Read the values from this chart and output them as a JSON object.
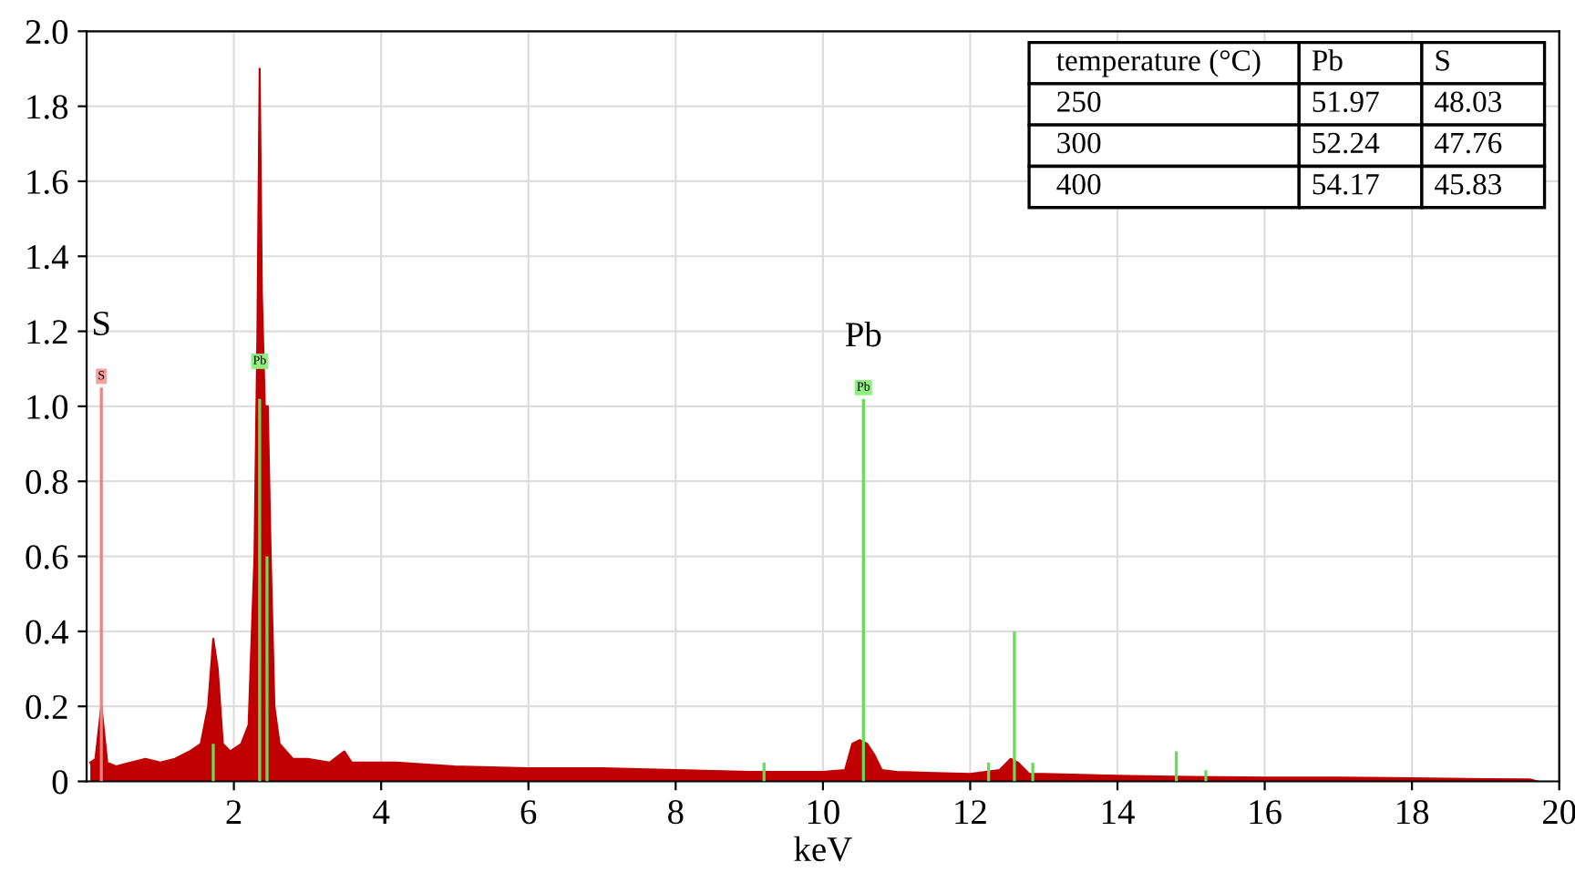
{
  "chart_data": {
    "type": "area",
    "xlabel": "keV",
    "xlim": [
      0,
      20
    ],
    "ylim": [
      0,
      2.0
    ],
    "xticks": [
      2,
      4,
      6,
      8,
      10,
      12,
      14,
      16,
      18,
      20
    ],
    "yticks": [
      0,
      0.2,
      0.4,
      0.6,
      0.8,
      {
        "value": 1.0,
        "label": "1.0"
      },
      1.2,
      1.4,
      1.6,
      1.8,
      {
        "value": 2.0,
        "label": "2.0"
      }
    ],
    "grid": true,
    "series": [
      {
        "color": "#c00000",
        "x": [
          0.05,
          0.12,
          0.2,
          0.28,
          0.4,
          0.6,
          0.8,
          1.0,
          1.2,
          1.4,
          1.55,
          1.65,
          1.72,
          1.78,
          1.85,
          1.95,
          2.1,
          2.2,
          2.28,
          2.32,
          2.35,
          2.38,
          2.42,
          2.46,
          2.5,
          2.55,
          2.62,
          2.8,
          3.0,
          3.3,
          3.5,
          3.6,
          3.8,
          4.2,
          5.0,
          6.0,
          7.0,
          8.0,
          9.0,
          10.0,
          10.3,
          10.4,
          10.5,
          10.6,
          10.7,
          10.8,
          11.0,
          12.0,
          12.4,
          12.55,
          12.65,
          12.8,
          13.0,
          14.0,
          15.0,
          16.0,
          17.0,
          18.0,
          19.0,
          19.6,
          19.7
        ],
        "values": [
          0.05,
          0.06,
          0.2,
          0.05,
          0.04,
          0.05,
          0.06,
          0.05,
          0.06,
          0.08,
          0.1,
          0.2,
          0.38,
          0.3,
          0.1,
          0.08,
          0.1,
          0.15,
          0.6,
          1.2,
          1.9,
          1.3,
          1.0,
          1.0,
          0.6,
          0.2,
          0.1,
          0.06,
          0.06,
          0.05,
          0.08,
          0.05,
          0.05,
          0.05,
          0.04,
          0.035,
          0.035,
          0.03,
          0.025,
          0.025,
          0.03,
          0.1,
          0.11,
          0.1,
          0.07,
          0.03,
          0.025,
          0.02,
          0.03,
          0.06,
          0.05,
          0.02,
          0.02,
          0.015,
          0.012,
          0.01,
          0.01,
          0.008,
          0.006,
          0.005,
          0
        ]
      },
      {
        "type": "bar",
        "color": "#f08080",
        "x": [
          0.2
        ],
        "values": [
          1.05
        ]
      },
      {
        "type": "bar",
        "color": "#66dd55",
        "x": [
          1.72,
          2.35,
          2.45,
          9.2,
          10.55,
          12.25,
          12.6,
          12.85,
          14.8,
          15.2
        ],
        "values": [
          0.1,
          1.02,
          0.6,
          0.05,
          1.02,
          0.05,
          0.4,
          0.05,
          0.08,
          0.03
        ]
      }
    ],
    "annotations": [
      {
        "text": "S",
        "x": 0.2,
        "y": 1.05
      },
      {
        "text": "Pb",
        "x": 2.35,
        "y": 1.02
      },
      {
        "text": "Pb",
        "x": 10.55,
        "y": 1.02
      },
      "S",
      "Pb",
      "temperature (°C)",
      "Pb",
      "S",
      "250",
      "51.97",
      "48.03",
      "300",
      "52.24",
      "47.76",
      "400",
      "54.17",
      "45.83"
    ]
  }
}
